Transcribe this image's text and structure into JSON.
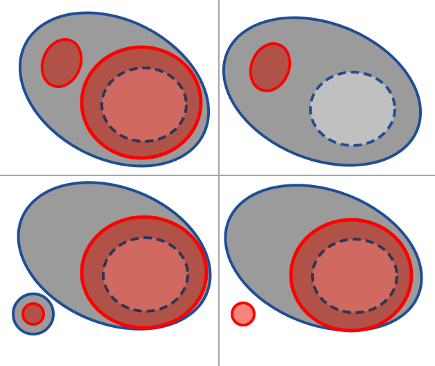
{
  "colors": {
    "background": "#ffffff",
    "divider": "#a6a6a6",
    "outer_fill": "#9b9b9b",
    "outer_stroke": "#1f4e96",
    "red_stroke": "#ff0000",
    "red_fill": "#b05248",
    "inner_fill": "#d06a60",
    "inner_dash_stroke": "#2b3558",
    "plain_inner_fill": "#c0c0c0",
    "plain_inner_dash_stroke": "#1f4e96",
    "small_circle_fill": "#f7857c"
  },
  "panels": [
    {
      "name": "top-left",
      "description_shapes": [
        "outer-ellipse",
        "small-red-ellipse",
        "large-red-ellipse",
        "dashed-inner-ellipse"
      ]
    },
    {
      "name": "top-right",
      "description_shapes": [
        "outer-ellipse",
        "small-red-ellipse",
        "dashed-inner-ellipse-plain"
      ]
    },
    {
      "name": "bottom-left",
      "description_shapes": [
        "outer-ellipse",
        "large-red-ellipse",
        "dashed-inner-ellipse",
        "small-satellite-circle"
      ]
    },
    {
      "name": "bottom-right",
      "description_shapes": [
        "outer-ellipse",
        "large-red-ellipse",
        "dashed-inner-ellipse",
        "small-free-red-circle"
      ]
    }
  ]
}
